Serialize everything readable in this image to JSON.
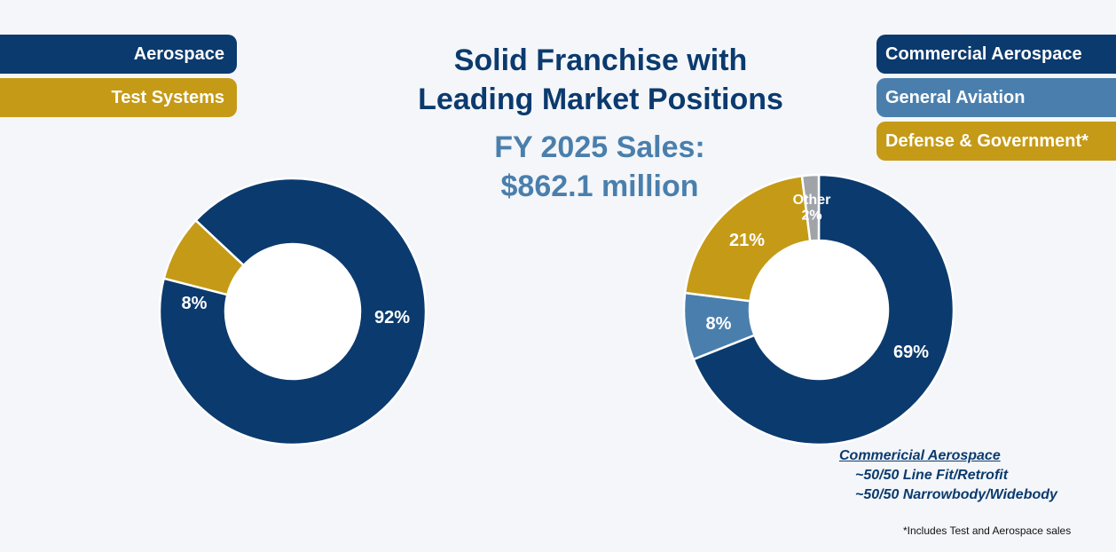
{
  "title_line1": "Solid Franchise with",
  "title_line2": "Leading Market Positions",
  "subtitle_line1": "FY 2025 Sales:",
  "subtitle_line2": "$862.1 million",
  "legend_left": [
    {
      "label": "Aerospace",
      "color": "#0b3a6e"
    },
    {
      "label": "Test Systems",
      "color": "#c59a17"
    }
  ],
  "legend_right": [
    {
      "label": "Commercial Aerospace",
      "color": "#0b3a6e"
    },
    {
      "label": "General Aviation",
      "color": "#4a7fad"
    },
    {
      "label": "Defense & Government*",
      "color": "#c59a17"
    }
  ],
  "note": {
    "title": "Commericial Aerospace",
    "line1": "~50/50 Line Fit/Retrofit",
    "line2": "~50/50 Narrowbody/Widebody"
  },
  "footnote": "*Includes Test and Aerospace sales",
  "chart_data": [
    {
      "type": "pie",
      "series": [
        {
          "name": "Aerospace",
          "value": 92,
          "label": "92%",
          "color": "#0b3a6e"
        },
        {
          "name": "Test Systems",
          "value": 8,
          "label": "8%",
          "color": "#c59a17"
        }
      ]
    },
    {
      "type": "pie",
      "series": [
        {
          "name": "Commercial Aerospace",
          "value": 69,
          "label": "69%",
          "color": "#0b3a6e"
        },
        {
          "name": "General Aviation",
          "value": 8,
          "label": "8%",
          "color": "#4a7fad"
        },
        {
          "name": "Defense & Government*",
          "value": 21,
          "label": "21%",
          "color": "#c59a17"
        },
        {
          "name": "Other",
          "value": 2,
          "label": "Other\n2%",
          "color": "#a0a3a8"
        }
      ]
    }
  ]
}
